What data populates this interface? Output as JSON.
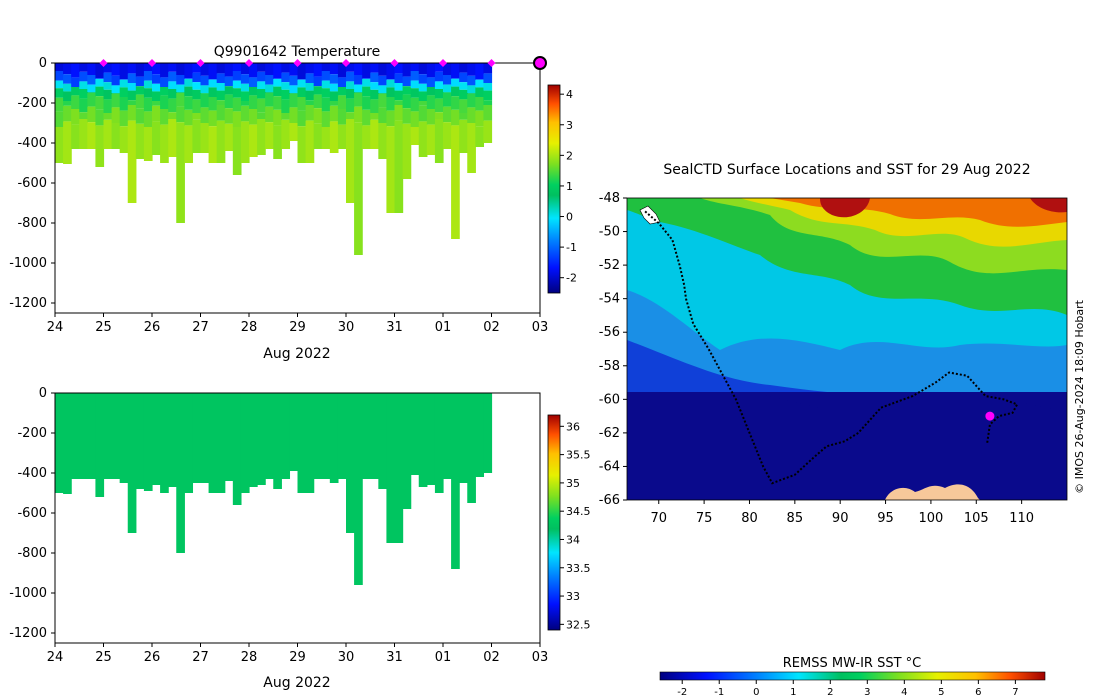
{
  "chart_data": [
    {
      "type": "heatmap",
      "title": "Q9901642  Temperature",
      "ylim": [
        -1250,
        0
      ],
      "yticks": [
        0,
        -200,
        -400,
        -600,
        -800,
        -1000,
        -1200
      ],
      "xticks": [
        "24",
        "25",
        "26",
        "27",
        "28",
        "29",
        "30",
        "31",
        "01",
        "02",
        "03"
      ],
      "xlabel": "Aug 2022",
      "profile_day_start": 24,
      "profile_day_end": 33,
      "profile_max_depths": [
        500,
        505,
        430,
        430,
        430,
        520,
        430,
        430,
        450,
        700,
        480,
        490,
        460,
        500,
        470,
        800,
        500,
        450,
        450,
        500,
        500,
        440,
        560,
        500,
        470,
        460,
        430,
        480,
        430,
        390,
        500,
        500,
        430,
        430,
        450,
        430,
        700,
        960,
        430,
        430,
        480,
        750,
        750,
        580,
        410,
        470,
        460,
        500,
        430,
        880,
        450,
        550,
        420,
        400
      ],
      "colorbar_ticks": [
        4,
        3,
        2,
        1,
        0,
        -1,
        -2
      ],
      "colorbar_range": [
        -2.5,
        4.3
      ],
      "surface_markers": [
        "25",
        "26",
        "27",
        "28",
        "29",
        "30",
        "31",
        "01",
        "02",
        "03"
      ],
      "layers": [
        {
          "depth": 60,
          "value": -1.8
        },
        {
          "depth": 100,
          "value": -1.2
        },
        {
          "depth": 130,
          "value": 0.0
        },
        {
          "depth": 170,
          "value": 0.9
        },
        {
          "depth": 230,
          "value": 1.3
        },
        {
          "depth": 300,
          "value": 1.6
        },
        {
          "depth": 2000,
          "value": 1.9
        }
      ]
    },
    {
      "type": "heatmap",
      "title": "",
      "ylim": [
        -1250,
        0
      ],
      "yticks": [
        0,
        -200,
        -400,
        -600,
        -800,
        -1000,
        -1200
      ],
      "xticks": [
        "24",
        "25",
        "26",
        "27",
        "28",
        "29",
        "30",
        "31",
        "01",
        "02",
        "03"
      ],
      "xlabel": "Aug 2022",
      "colorbar_ticks": [
        36,
        35.5,
        35,
        34.5,
        34,
        33.5,
        33,
        32.5
      ],
      "colorbar_range": [
        32.4,
        36.2
      ],
      "value": 34.25
    },
    {
      "type": "heatmap",
      "title": "SealCTD Surface Locations and SST for 29 Aug 2022",
      "xlim": [
        66.5,
        115
      ],
      "ylim": [
        -66,
        -48
      ],
      "xticks": [
        70,
        75,
        80,
        85,
        90,
        95,
        100,
        105,
        110
      ],
      "yticks": [
        -48,
        -50,
        -52,
        -54,
        -56,
        -58,
        -60,
        -62,
        -64,
        -66
      ],
      "colorbar_label": "REMSS MW-IR SST °C",
      "colorbar_ticks": [
        -2,
        -1,
        0,
        1,
        2,
        3,
        4,
        5,
        6,
        7
      ],
      "colorbar_range": [
        -2.6,
        7.8
      ],
      "current_position": {
        "lon": 106.5,
        "lat": -61.0
      },
      "track": [
        [
          68.5,
          -48.8
        ],
        [
          70,
          -49.5
        ],
        [
          71.5,
          -50.5
        ],
        [
          72.3,
          -52
        ],
        [
          72.8,
          -53.2
        ],
        [
          73,
          -54
        ],
        [
          73.8,
          -55.5
        ],
        [
          75.5,
          -57
        ],
        [
          77,
          -58.5
        ],
        [
          78.5,
          -60
        ],
        [
          80,
          -62
        ],
        [
          81.5,
          -64
        ],
        [
          82.5,
          -65
        ],
        [
          85,
          -64.5
        ],
        [
          87,
          -63.5
        ],
        [
          88.5,
          -62.8
        ],
        [
          90.5,
          -62.5
        ],
        [
          92,
          -62
        ],
        [
          94.5,
          -60.5
        ],
        [
          98,
          -59.8
        ],
        [
          100.5,
          -59
        ],
        [
          102,
          -58.4
        ],
        [
          104,
          -58.6
        ],
        [
          106,
          -59.8
        ],
        [
          108,
          -60
        ],
        [
          109.5,
          -60.3
        ],
        [
          109,
          -60.8
        ],
        [
          107.5,
          -61
        ],
        [
          106.5,
          -61.5
        ],
        [
          106.2,
          -62.6
        ]
      ]
    }
  ],
  "credit": "© IMOS 26-Aug-2024 18:09 Hobart"
}
